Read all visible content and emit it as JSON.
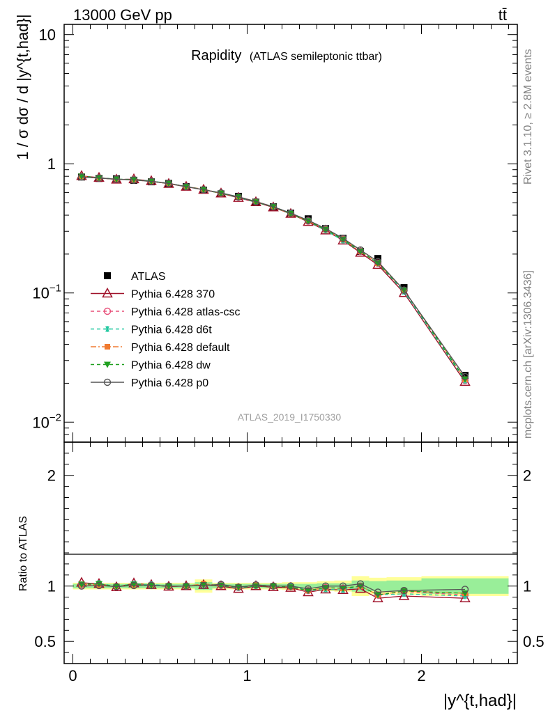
{
  "header": {
    "energy_label": "13000 GeV pp",
    "process_label": "tt̄"
  },
  "side_labels": {
    "rivet": "Rivet 3.1.10, ≥ 2.8M events",
    "mcplots": "mcplots.cern.ch [arXiv:1306.3436]"
  },
  "chart_data": [
    {
      "type": "line",
      "title": "Rapidity",
      "subtitle": "(ATLAS semileptonic ttbar)",
      "ylabel": "1 / σ dσ / d |y^{t,had}|",
      "xlabel": "",
      "y_scale": "log",
      "ylim": [
        0.007,
        12
      ],
      "xlim": [
        -0.05,
        2.55
      ],
      "watermark": "ATLAS_2019_I1750330",
      "legend_position": "center-left",
      "x_ticks": [],
      "y_ticks": [
        {
          "value": 10,
          "label": "10"
        },
        {
          "value": 1,
          "label": "1"
        },
        {
          "value": 0.1,
          "label": "10",
          "exp": "−1"
        },
        {
          "value": 0.01,
          "label": "10",
          "exp": "−2"
        }
      ],
      "x": [
        0.05,
        0.15,
        0.25,
        0.35,
        0.45,
        0.55,
        0.65,
        0.75,
        0.85,
        0.95,
        1.05,
        1.15,
        1.25,
        1.35,
        1.45,
        1.55,
        1.65,
        1.75,
        1.9,
        2.25
      ],
      "x_edges": [
        0.0,
        0.1,
        0.2,
        0.3,
        0.4,
        0.5,
        0.6,
        0.7,
        0.8,
        0.9,
        1.0,
        1.1,
        1.2,
        1.3,
        1.4,
        1.5,
        1.6,
        1.7,
        1.8,
        2.0,
        2.5
      ],
      "series": [
        {
          "name": "ATLAS",
          "color": "#000000",
          "marker": "square",
          "line": "none",
          "values": [
            0.79,
            0.77,
            0.765,
            0.745,
            0.725,
            0.705,
            0.665,
            0.625,
            0.585,
            0.56,
            0.505,
            0.465,
            0.415,
            0.375,
            0.315,
            0.265,
            0.21,
            0.185,
            0.11,
            0.023
          ]
        },
        {
          "name": "Pythia 6.428 370",
          "color": "#a0122a",
          "marker": "triangle-open",
          "line": "solid",
          "values": [
            0.805,
            0.78,
            0.755,
            0.76,
            0.735,
            0.7,
            0.665,
            0.63,
            0.59,
            0.545,
            0.505,
            0.46,
            0.41,
            0.355,
            0.305,
            0.255,
            0.205,
            0.165,
            0.1,
            0.0205
          ]
        },
        {
          "name": "Pythia 6.428 atlas-csc",
          "color": "#e8507a",
          "marker": "circle-open",
          "line": "dashed",
          "values": [
            0.795,
            0.775,
            0.76,
            0.75,
            0.73,
            0.705,
            0.665,
            0.63,
            0.59,
            0.555,
            0.51,
            0.465,
            0.415,
            0.36,
            0.31,
            0.26,
            0.21,
            0.17,
            0.105,
            0.021
          ]
        },
        {
          "name": "Pythia 6.428 d6t",
          "color": "#20c8a0",
          "marker": "asterisk",
          "line": "dashed",
          "values": [
            0.8,
            0.78,
            0.76,
            0.755,
            0.735,
            0.705,
            0.665,
            0.635,
            0.59,
            0.55,
            0.505,
            0.465,
            0.415,
            0.36,
            0.305,
            0.255,
            0.21,
            0.17,
            0.102,
            0.021
          ]
        },
        {
          "name": "Pythia 6.428 default",
          "color": "#f07a30",
          "marker": "square-filled",
          "line": "dashdot",
          "values": [
            0.8,
            0.775,
            0.76,
            0.75,
            0.73,
            0.705,
            0.665,
            0.635,
            0.59,
            0.555,
            0.51,
            0.465,
            0.41,
            0.36,
            0.31,
            0.26,
            0.21,
            0.17,
            0.105,
            0.0215
          ]
        },
        {
          "name": "Pythia 6.428 dw",
          "color": "#20a020",
          "marker": "triangle-down",
          "line": "dashed",
          "values": [
            0.8,
            0.78,
            0.76,
            0.755,
            0.73,
            0.705,
            0.665,
            0.63,
            0.59,
            0.555,
            0.505,
            0.465,
            0.41,
            0.36,
            0.31,
            0.26,
            0.21,
            0.17,
            0.105,
            0.0215
          ]
        },
        {
          "name": "Pythia 6.428 p0",
          "color": "#555555",
          "marker": "circle-open",
          "line": "solid",
          "values": [
            0.79,
            0.775,
            0.76,
            0.75,
            0.73,
            0.705,
            0.665,
            0.63,
            0.595,
            0.555,
            0.51,
            0.465,
            0.415,
            0.365,
            0.315,
            0.265,
            0.215,
            0.175,
            0.105,
            0.0225
          ]
        }
      ]
    },
    {
      "type": "line",
      "title": "",
      "ylabel": "Ratio to ATLAS",
      "xlabel": "|y^{t,had}|",
      "ylim": [
        0.3,
        2.3
      ],
      "xlim": [
        -0.05,
        2.55
      ],
      "x_ticks": [
        {
          "value": 0,
          "label": "0"
        },
        {
          "value": 1,
          "label": "1"
        },
        {
          "value": 2,
          "label": "2"
        }
      ],
      "y_ticks": [
        {
          "value": 2,
          "label": "2"
        },
        {
          "value": 1,
          "label": "1"
        },
        {
          "value": 0.5,
          "label": "0.5"
        }
      ],
      "x": [
        0.05,
        0.15,
        0.25,
        0.35,
        0.45,
        0.55,
        0.65,
        0.75,
        0.85,
        0.95,
        1.05,
        1.15,
        1.25,
        1.35,
        1.45,
        1.55,
        1.65,
        1.75,
        1.9,
        2.25
      ],
      "x_edges": [
        0.0,
        0.1,
        0.2,
        0.3,
        0.4,
        0.5,
        0.6,
        0.7,
        0.8,
        0.9,
        1.0,
        1.1,
        1.2,
        1.3,
        1.4,
        1.5,
        1.6,
        1.7,
        1.8,
        2.0,
        2.5
      ],
      "band_stat": [
        0.02,
        0.02,
        0.02,
        0.02,
        0.02,
        0.02,
        0.02,
        0.035,
        0.02,
        0.02,
        0.02,
        0.02,
        0.02,
        0.02,
        0.025,
        0.025,
        0.05,
        0.045,
        0.05,
        0.07
      ],
      "band_total": [
        0.03,
        0.03,
        0.03,
        0.03,
        0.03,
        0.03,
        0.03,
        0.06,
        0.03,
        0.03,
        0.03,
        0.03,
        0.035,
        0.035,
        0.045,
        0.05,
        0.09,
        0.075,
        0.08,
        0.09
      ],
      "series": [
        {
          "name": "Pythia 6.428 370",
          "color": "#a0122a",
          "marker": "triangle-open",
          "line": "solid",
          "values": [
            1.03,
            1.02,
            0.99,
            1.025,
            1.01,
            0.995,
            1.0,
            1.01,
            1.0,
            0.975,
            1.0,
            0.99,
            0.985,
            0.945,
            0.97,
            0.965,
            0.975,
            0.89,
            0.91,
            0.89
          ]
        },
        {
          "name": "Pythia 6.428 atlas-csc",
          "color": "#e8507a",
          "marker": "circle-open",
          "line": "dashed",
          "values": [
            1.01,
            1.01,
            0.995,
            1.01,
            1.01,
            1.0,
            1.0,
            1.01,
            1.005,
            0.99,
            1.01,
            1.0,
            1.0,
            0.96,
            0.985,
            0.98,
            1.0,
            0.92,
            0.95,
            0.92
          ]
        },
        {
          "name": "Pythia 6.428 d6t",
          "color": "#20c8a0",
          "marker": "asterisk",
          "line": "dashed",
          "values": [
            1.015,
            1.025,
            0.995,
            1.02,
            1.015,
            1.0,
            1.0,
            1.015,
            1.005,
            0.985,
            1.0,
            1.0,
            1.0,
            0.96,
            0.97,
            0.965,
            1.0,
            0.92,
            0.93,
            0.91
          ]
        },
        {
          "name": "Pythia 6.428 default",
          "color": "#f07a30",
          "marker": "square-filled",
          "line": "dashdot",
          "values": [
            1.015,
            1.01,
            0.995,
            1.01,
            1.005,
            1.0,
            1.0,
            1.02,
            1.005,
            0.99,
            1.01,
            1.0,
            0.99,
            0.96,
            0.985,
            0.98,
            1.0,
            0.92,
            0.955,
            0.935
          ]
        },
        {
          "name": "Pythia 6.428 dw",
          "color": "#20a020",
          "marker": "triangle-down",
          "line": "dashed",
          "values": [
            1.015,
            1.02,
            0.995,
            1.015,
            1.005,
            1.0,
            1.0,
            1.01,
            1.005,
            0.99,
            1.0,
            1.0,
            0.99,
            0.96,
            0.985,
            0.98,
            1.0,
            0.92,
            0.955,
            0.935
          ]
        },
        {
          "name": "Pythia 6.428 p0",
          "color": "#555555",
          "marker": "circle-open",
          "line": "solid",
          "values": [
            1.0,
            1.005,
            0.995,
            1.005,
            1.005,
            1.0,
            1.0,
            1.005,
            1.015,
            0.99,
            1.01,
            1.0,
            1.0,
            0.975,
            1.0,
            1.0,
            1.02,
            0.945,
            0.96,
            0.97
          ]
        }
      ]
    }
  ]
}
